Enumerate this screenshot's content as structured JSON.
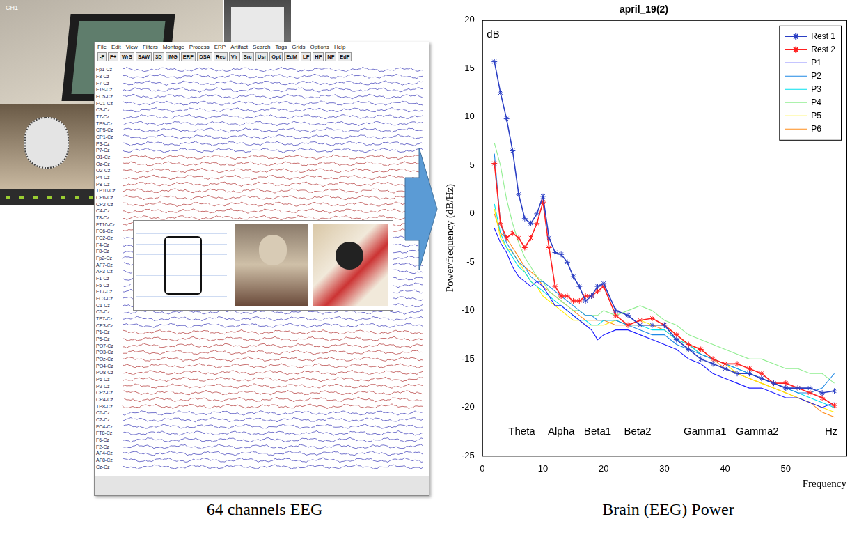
{
  "chart_data": {
    "type": "line",
    "title": "april_19(2)",
    "x_label": "Frequency",
    "y_label": "Power/frequency (dB/Hz)",
    "caption": "Brain (EEG) Power",
    "x": [
      2,
      3,
      4,
      5,
      6,
      7,
      8,
      9,
      10,
      11,
      12,
      13,
      14,
      15,
      16,
      17,
      18,
      19,
      20,
      22,
      24,
      26,
      28,
      30,
      32,
      34,
      36,
      38,
      40,
      42,
      44,
      46,
      48,
      50,
      52,
      54,
      56,
      58
    ],
    "series": [
      {
        "name": "Rest 1",
        "color": "#2b3fc4",
        "marker": "star",
        "values": [
          15.7,
          12.5,
          9.8,
          6.5,
          2,
          -0.5,
          -1,
          0,
          1.8,
          -2.5,
          -4,
          -4.2,
          -5,
          -6.5,
          -7.5,
          -9,
          -8.5,
          -7.5,
          -7.2,
          -10,
          -10.5,
          -11.5,
          -11.5,
          -11.5,
          -13,
          -14,
          -15,
          -15.5,
          -16,
          -16.5,
          -16.5,
          -17,
          -17.5,
          -18,
          -18,
          -18,
          -18.5,
          -18.3
        ]
      },
      {
        "name": "Rest 2",
        "color": "#ff2020",
        "marker": "star",
        "values": [
          5.2,
          -1,
          -2.5,
          -2,
          -2.5,
          -3.5,
          -2.5,
          -1,
          1.2,
          -3.5,
          -7.5,
          -8.5,
          -8.5,
          -9,
          -9,
          -8.5,
          -8.5,
          -8,
          -7.5,
          -10.5,
          -11.5,
          -11,
          -10.8,
          -11.5,
          -12.5,
          -13.5,
          -14,
          -15,
          -15.5,
          -15.5,
          -16,
          -16.5,
          -17.5,
          -17.5,
          -18,
          -18.5,
          -19,
          -19.8
        ]
      },
      {
        "name": "P1",
        "color": "#1a1aff",
        "values": [
          -1.5,
          -3,
          -4,
          -5.5,
          -6.5,
          -7,
          -7.5,
          -7,
          -7.5,
          -8.5,
          -9.5,
          -9.5,
          -10,
          -10.5,
          -11,
          -11.5,
          -12,
          -13,
          -12.5,
          -12,
          -12,
          -12.5,
          -13,
          -13.5,
          -14,
          -15,
          -15.5,
          -16.5,
          -17,
          -17.5,
          -18,
          -18,
          -18.5,
          -19,
          -19,
          -19.5,
          -20,
          -19.5
        ]
      },
      {
        "name": "P2",
        "color": "#1e88e5",
        "values": [
          6.2,
          -1,
          -3,
          -4,
          -5,
          -5.5,
          -6.5,
          -7,
          -7,
          -7.5,
          -8,
          -8.5,
          -9,
          -9.5,
          -10,
          -10.5,
          -10.5,
          -11,
          -11,
          -11,
          -11.5,
          -12,
          -12.5,
          -12.5,
          -13.5,
          -14,
          -14.5,
          -15,
          -15.5,
          -16,
          -16.5,
          -17,
          -17.5,
          -18,
          -18.5,
          -18.5,
          -18,
          -16.5
        ]
      },
      {
        "name": "P3",
        "color": "#00e0ee",
        "values": [
          1,
          -2,
          -3.5,
          -4.5,
          -5.5,
          -6,
          -7,
          -7.5,
          -8,
          -8.5,
          -9,
          -9.5,
          -10,
          -10.5,
          -11,
          -11,
          -11.5,
          -11.5,
          -11,
          -11,
          -11.5,
          -11.5,
          -12,
          -12,
          -13,
          -13.5,
          -14.5,
          -15,
          -15.5,
          -16,
          -16.5,
          -17,
          -17.5,
          -18,
          -18.5,
          -19,
          -19.5,
          -20
        ]
      },
      {
        "name": "P4",
        "color": "#90ee90",
        "values": [
          7.3,
          5,
          1.5,
          -1,
          -3,
          -4.5,
          -5.5,
          -6.5,
          -7,
          -8,
          -8.5,
          -9,
          -9.5,
          -10,
          -10,
          -10.5,
          -10.5,
          -10.5,
          -10,
          -10.5,
          -10,
          -9.5,
          -10,
          -11,
          -11.5,
          -12.5,
          -13,
          -13.5,
          -14,
          -14.5,
          -15,
          -15,
          -15.5,
          -16,
          -16,
          -16.5,
          -16.5,
          -17.5
        ]
      },
      {
        "name": "P5",
        "color": "#ffee00",
        "values": [
          0.5,
          -2.5,
          -3.5,
          -4,
          -5,
          -6,
          -7,
          -7.5,
          -8.5,
          -9,
          -9.5,
          -10,
          -10.5,
          -11,
          -11,
          -11.5,
          -11.5,
          -11.5,
          -11.5,
          -11,
          -11.5,
          -11,
          -11.5,
          -11.5,
          -12.5,
          -13.5,
          -14,
          -15,
          -15.5,
          -16.5,
          -17,
          -17.5,
          -18,
          -18.5,
          -19,
          -19.5,
          -20,
          -20.5
        ]
      },
      {
        "name": "P6",
        "color": "#ff8c1a",
        "values": [
          0,
          -2,
          -2.5,
          -3.5,
          -4.5,
          -5.5,
          -6,
          -6.5,
          -7.5,
          -8,
          -8.5,
          -9,
          -9.5,
          -10,
          -10.5,
          -11,
          -11,
          -11,
          -11,
          -11.5,
          -11.5,
          -11.5,
          -11.5,
          -12,
          -13,
          -13.5,
          -14.5,
          -15,
          -16,
          -16.5,
          -17,
          -17.5,
          -18,
          -18.5,
          -19,
          -19.5,
          -20.5,
          -21
        ]
      }
    ],
    "xlim": [
      0,
      60
    ],
    "xticks": [
      0,
      10,
      20,
      30,
      40,
      50
    ],
    "ylim": [
      -25,
      20
    ],
    "yticks": [
      -25,
      -20,
      -15,
      -10,
      -5,
      0,
      5,
      10,
      15,
      20
    ],
    "grid": false,
    "legend": "upper right",
    "annotations": [
      {
        "text": "dB",
        "x": 1.8,
        "y": 18.5
      },
      {
        "text": "Theta",
        "x": 6.5,
        "y": -22.5
      },
      {
        "text": "Alpha",
        "x": 13,
        "y": -22.5
      },
      {
        "text": "Beta1",
        "x": 19,
        "y": -22.5
      },
      {
        "text": "Beta2",
        "x": 25.6,
        "y": -22.5
      },
      {
        "text": "Gamma1",
        "x": 36.7,
        "y": -22.5
      },
      {
        "text": "Gamma2",
        "x": 45.3,
        "y": -22.5
      },
      {
        "text": "Hz",
        "x": 57.5,
        "y": -22.5
      }
    ]
  },
  "eeg_panel": {
    "photo_label": "CH1",
    "caption": "64 channels EEG",
    "menu": [
      "File",
      "Edit",
      "View",
      "Filters",
      "Montage",
      "Process",
      "ERP",
      "Artifact",
      "Search",
      "Tags",
      "Grids",
      "Options",
      "Help"
    ],
    "toolbar": [
      "-F",
      "F+",
      "WrS",
      "SAW",
      "3D",
      "IMG",
      "ERP",
      "DSA",
      "Rec",
      "Vir",
      "Src",
      "Usr",
      "Opt",
      "EdM",
      "LF",
      "HF",
      "NF",
      "EdF"
    ],
    "channels": [
      "Fp1-Cz",
      "F3-Cz",
      "F7-Cz",
      "FT9-Cz",
      "FC5-Cz",
      "FC1-Cz",
      "C3-Cz",
      "T7-Cz",
      "TP9-Cz",
      "CP5-Cz",
      "CP1-Cz",
      "P3-Cz",
      "P7-Cz",
      "O1-Cz",
      "Oz-Cz",
      "O2-Cz",
      "P4-Cz",
      "P8-Cz",
      "TP10-Cz",
      "CP6-Cz",
      "CP2-Cz",
      "C4-Cz",
      "T8-Cz",
      "FT10-Cz",
      "FC6-Cz",
      "FC2-Cz",
      "F4-Cz",
      "F8-Cz",
      "Fp2-Cz",
      "AF7-Cz",
      "AF3-Cz",
      "F1-Cz",
      "F5-Cz",
      "FT7-Cz",
      "FC3-Cz",
      "C1-Cz",
      "C5-Cz",
      "TP7-Cz",
      "CP3-Cz",
      "P1-Cz",
      "P5-Cz",
      "PO7-Cz",
      "PO3-Cz",
      "POz-Cz",
      "PO4-Cz",
      "PO8-Cz",
      "P6-Cz",
      "P2-Cz",
      "CPz-Cz",
      "CP4-Cz",
      "TP8-Cz",
      "C6-Cz",
      "C2-Cz",
      "FC4-Cz",
      "FT8-Cz",
      "F6-Cz",
      "F2-Cz",
      "AF4-Cz",
      "AF8-Cz",
      "Cz-Cz"
    ]
  }
}
